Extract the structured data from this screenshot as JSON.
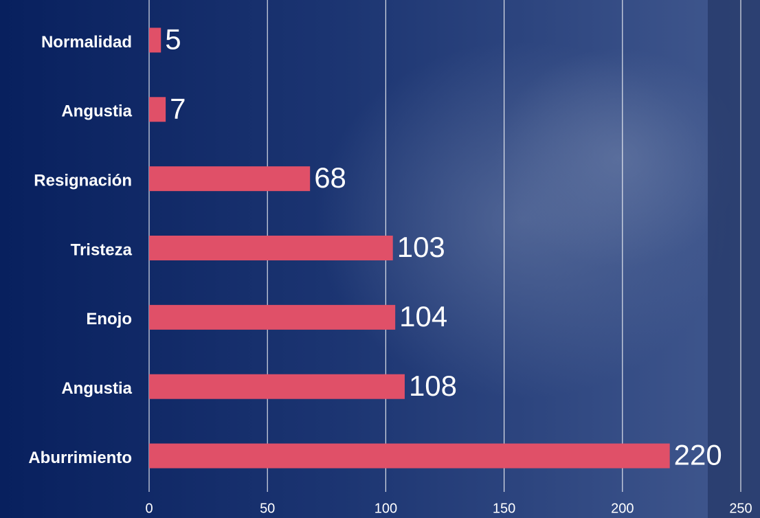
{
  "chart_data": {
    "type": "hbar",
    "categories": [
      "Normalidad",
      "Angustia",
      "Resignación",
      "Tristeza",
      "Enojo",
      "Angustia",
      "Aburrimiento"
    ],
    "values": [
      5,
      7,
      68,
      103,
      104,
      108,
      220
    ],
    "color": "#e05068",
    "xlim": [
      0,
      250
    ],
    "xticks": [
      0,
      50,
      100,
      150,
      200,
      250
    ],
    "grid": true
  }
}
